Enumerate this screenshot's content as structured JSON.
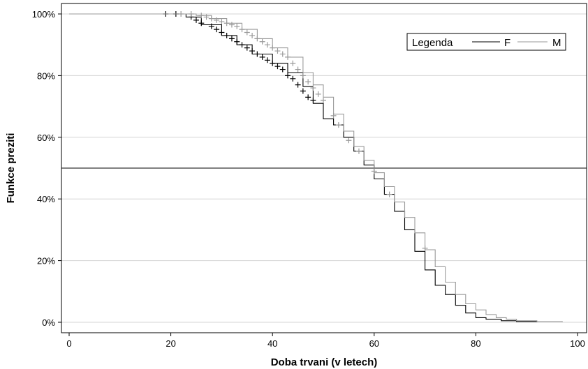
{
  "chart_data": {
    "type": "line",
    "title": "",
    "xlabel": "Doba trvani (v letech)",
    "ylabel": "Funkce preziti",
    "xlim": [
      0,
      100
    ],
    "ylim": [
      0,
      100
    ],
    "x_ticks": [
      "0",
      "20",
      "40",
      "60",
      "80",
      "100"
    ],
    "y_ticks": [
      "0%",
      "20%",
      "40%",
      "60%",
      "80%",
      "100%"
    ],
    "grid": "horizontal",
    "reference_line": {
      "y": 50
    },
    "legend": {
      "title": "Legenda",
      "position": "top-right"
    },
    "series": [
      {
        "name": "F",
        "color": "#000000",
        "points": [
          [
            0,
            100
          ],
          [
            20,
            100
          ],
          [
            23,
            99
          ],
          [
            26,
            96.5
          ],
          [
            30,
            93
          ],
          [
            33,
            90
          ],
          [
            36,
            87
          ],
          [
            40,
            84
          ],
          [
            43,
            81
          ],
          [
            46,
            76.5
          ],
          [
            48,
            71
          ],
          [
            50,
            66
          ],
          [
            52,
            64
          ],
          [
            54,
            60
          ],
          [
            56,
            55.5
          ],
          [
            58,
            51
          ],
          [
            60,
            46.5
          ],
          [
            62,
            41.5
          ],
          [
            64,
            36
          ],
          [
            66,
            30
          ],
          [
            68,
            23
          ],
          [
            70,
            17
          ],
          [
            72,
            12
          ],
          [
            74,
            9
          ],
          [
            76,
            5.5
          ],
          [
            78,
            3
          ],
          [
            80,
            1.5
          ],
          [
            82,
            1
          ],
          [
            85,
            0.5
          ],
          [
            88,
            0.2
          ],
          [
            92,
            0
          ]
        ],
        "censored": [
          [
            19,
            100
          ],
          [
            21,
            100
          ],
          [
            24,
            99
          ],
          [
            25,
            98
          ],
          [
            26,
            97
          ],
          [
            28,
            96
          ],
          [
            29,
            95
          ],
          [
            30,
            94
          ],
          [
            31,
            93
          ],
          [
            32,
            92
          ],
          [
            33,
            91
          ],
          [
            34,
            90
          ],
          [
            35,
            89
          ],
          [
            36,
            88
          ],
          [
            37,
            87
          ],
          [
            38,
            86
          ],
          [
            39,
            85
          ],
          [
            40,
            84
          ],
          [
            41,
            83
          ],
          [
            42,
            82
          ],
          [
            43,
            80
          ],
          [
            44,
            79
          ],
          [
            45,
            77
          ],
          [
            46,
            75
          ],
          [
            47,
            73
          ],
          [
            48,
            72
          ]
        ]
      },
      {
        "name": "M",
        "color": "#9a9a9a",
        "points": [
          [
            0,
            100
          ],
          [
            22,
            100
          ],
          [
            25,
            99.5
          ],
          [
            28,
            98.5
          ],
          [
            31,
            97
          ],
          [
            34,
            95
          ],
          [
            37,
            92
          ],
          [
            40,
            89
          ],
          [
            43,
            86
          ],
          [
            46,
            81
          ],
          [
            48,
            77
          ],
          [
            50,
            73
          ],
          [
            52,
            67.5
          ],
          [
            54,
            62
          ],
          [
            56,
            57
          ],
          [
            58,
            52.5
          ],
          [
            60,
            48.5
          ],
          [
            62,
            44
          ],
          [
            64,
            39
          ],
          [
            66,
            34
          ],
          [
            68,
            29
          ],
          [
            70,
            23.5
          ],
          [
            72,
            18
          ],
          [
            74,
            13
          ],
          [
            76,
            9
          ],
          [
            78,
            6
          ],
          [
            80,
            4
          ],
          [
            82,
            2.5
          ],
          [
            84,
            1.5
          ],
          [
            86,
            1
          ],
          [
            88,
            0.5
          ],
          [
            92,
            0.2
          ],
          [
            97,
            0
          ]
        ],
        "censored": [
          [
            22,
            100
          ],
          [
            24,
            100
          ],
          [
            26,
            99.5
          ],
          [
            27,
            99
          ],
          [
            28,
            98.5
          ],
          [
            29,
            98
          ],
          [
            30,
            97.5
          ],
          [
            31,
            97
          ],
          [
            32,
            96.5
          ],
          [
            33,
            96
          ],
          [
            34,
            95
          ],
          [
            35,
            94
          ],
          [
            36,
            93
          ],
          [
            37,
            92
          ],
          [
            38,
            91
          ],
          [
            39,
            90
          ],
          [
            40,
            89
          ],
          [
            41,
            88
          ],
          [
            42,
            87
          ],
          [
            43,
            86
          ],
          [
            44,
            84
          ],
          [
            45,
            82
          ],
          [
            46,
            80
          ],
          [
            47,
            78
          ],
          [
            48,
            76
          ],
          [
            49,
            74
          ],
          [
            50,
            72
          ],
          [
            52,
            67
          ],
          [
            53,
            64
          ],
          [
            55,
            59
          ],
          [
            57,
            55.5
          ],
          [
            60,
            49
          ],
          [
            63,
            41.5
          ],
          [
            70,
            24
          ]
        ]
      }
    ]
  }
}
